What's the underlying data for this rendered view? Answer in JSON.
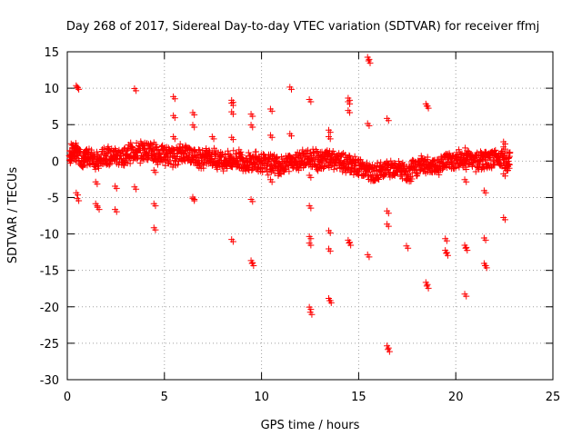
{
  "chart_data": {
    "type": "scatter",
    "title": "Day 268 of 2017, Sidereal Day-to-day VTEC variation (SDTVAR) for receiver ffmj",
    "xlabel": "GPS time / hours",
    "ylabel": "SDTVAR / TECUs",
    "xlim": [
      0,
      25
    ],
    "ylim": [
      -30,
      15
    ],
    "x_ticks": [
      0,
      5,
      10,
      15,
      20,
      25
    ],
    "y_ticks": [
      -30,
      -25,
      -20,
      -15,
      -10,
      -5,
      0,
      5,
      10,
      15
    ],
    "grid": true,
    "marker": "+",
    "series": [
      {
        "name": "SDTVAR",
        "color": "#ff0000",
        "baseline_band": [
          [
            0.1,
            0.6
          ],
          [
            0.3,
            1.4
          ],
          [
            0.5,
            1.0
          ],
          [
            0.8,
            0.2
          ],
          [
            1.0,
            0.4
          ],
          [
            1.3,
            0.7
          ],
          [
            1.6,
            -0.3
          ],
          [
            1.9,
            0.8
          ],
          [
            2.2,
            0.5
          ],
          [
            2.5,
            0.9
          ],
          [
            2.8,
            0.4
          ],
          [
            3.1,
            1.0
          ],
          [
            3.4,
            1.3
          ],
          [
            3.7,
            1.1
          ],
          [
            4.0,
            1.6
          ],
          [
            4.3,
            1.2
          ],
          [
            4.6,
            0.8
          ],
          [
            4.9,
            1.0
          ],
          [
            5.2,
            0.7
          ],
          [
            5.5,
            0.6
          ],
          [
            5.8,
            1.0
          ],
          [
            6.1,
            1.2
          ],
          [
            6.4,
            0.9
          ],
          [
            6.7,
            0.4
          ],
          [
            7.0,
            0.3
          ],
          [
            7.3,
            0.6
          ],
          [
            7.6,
            0.4
          ],
          [
            7.9,
            0.2
          ],
          [
            8.2,
            0.0
          ],
          [
            8.5,
            0.1
          ],
          [
            8.8,
            0.3
          ],
          [
            9.1,
            0.0
          ],
          [
            9.4,
            -0.3
          ],
          [
            9.7,
            0.0
          ],
          [
            10.0,
            -0.1
          ],
          [
            10.3,
            -0.5
          ],
          [
            10.6,
            -0.2
          ],
          [
            10.9,
            -0.8
          ],
          [
            11.2,
            -0.5
          ],
          [
            11.5,
            0.0
          ],
          [
            11.8,
            0.1
          ],
          [
            12.1,
            0.4
          ],
          [
            12.4,
            0.2
          ],
          [
            12.7,
            0.3
          ],
          [
            13.0,
            -0.1
          ],
          [
            13.3,
            0.3
          ],
          [
            13.6,
            0.1
          ],
          [
            13.9,
            0.0
          ],
          [
            14.2,
            -0.3
          ],
          [
            14.5,
            -0.4
          ],
          [
            14.8,
            -0.7
          ],
          [
            15.1,
            -1.0
          ],
          [
            15.4,
            -1.3
          ],
          [
            15.7,
            -1.8
          ],
          [
            16.0,
            -1.6
          ],
          [
            16.3,
            -1.1
          ],
          [
            16.6,
            -1.3
          ],
          [
            16.9,
            -0.7
          ],
          [
            17.2,
            -1.2
          ],
          [
            17.5,
            -2.0
          ],
          [
            17.8,
            -1.2
          ],
          [
            18.1,
            -0.6
          ],
          [
            18.4,
            -0.4
          ],
          [
            18.7,
            -0.6
          ],
          [
            19.0,
            -0.8
          ],
          [
            19.3,
            -0.1
          ],
          [
            19.6,
            0.1
          ],
          [
            19.9,
            0.0
          ],
          [
            20.2,
            0.3
          ],
          [
            20.5,
            0.4
          ],
          [
            20.8,
            0.2
          ],
          [
            21.1,
            -0.2
          ],
          [
            21.4,
            0.1
          ],
          [
            21.7,
            0.0
          ],
          [
            22.0,
            0.4
          ],
          [
            22.3,
            0.6
          ],
          [
            22.6,
            -0.3
          ],
          [
            22.8,
            0.0
          ]
        ],
        "outliers": [
          [
            0.5,
            10.2
          ],
          [
            0.55,
            10.0
          ],
          [
            0.5,
            -4.5
          ],
          [
            0.55,
            -5.3
          ],
          [
            1.5,
            -3.0
          ],
          [
            1.5,
            -6.0
          ],
          [
            1.6,
            -6.5
          ],
          [
            2.5,
            -3.6
          ],
          [
            2.5,
            -6.8
          ],
          [
            3.5,
            9.8
          ],
          [
            3.5,
            -3.7
          ],
          [
            4.5,
            2.4
          ],
          [
            4.5,
            -1.4
          ],
          [
            4.5,
            -6.0
          ],
          [
            4.5,
            -9.3
          ],
          [
            5.5,
            8.7
          ],
          [
            5.5,
            6.1
          ],
          [
            5.5,
            3.2
          ],
          [
            6.5,
            6.5
          ],
          [
            6.5,
            4.8
          ],
          [
            6.5,
            -5.1
          ],
          [
            6.5,
            -5.3
          ],
          [
            7.5,
            3.2
          ],
          [
            8.5,
            8.2
          ],
          [
            8.5,
            7.8
          ],
          [
            8.5,
            6.6
          ],
          [
            8.5,
            3.1
          ],
          [
            8.5,
            -10.9
          ],
          [
            9.5,
            6.3
          ],
          [
            9.5,
            4.8
          ],
          [
            9.5,
            -5.4
          ],
          [
            9.5,
            -13.8
          ],
          [
            9.55,
            -14.2
          ],
          [
            10.5,
            7.0
          ],
          [
            10.5,
            3.4
          ],
          [
            10.5,
            -2.7
          ],
          [
            11.5,
            10.0
          ],
          [
            11.5,
            3.6
          ],
          [
            12.5,
            8.3
          ],
          [
            12.5,
            -6.3
          ],
          [
            12.5,
            -10.5
          ],
          [
            12.5,
            -11.4
          ],
          [
            12.5,
            -20.2
          ],
          [
            12.55,
            -20.9
          ],
          [
            12.5,
            -2.1
          ],
          [
            13.5,
            4.1
          ],
          [
            13.5,
            3.2
          ],
          [
            13.5,
            -9.7
          ],
          [
            13.5,
            -12.2
          ],
          [
            13.5,
            -19.0
          ],
          [
            13.55,
            -19.3
          ],
          [
            14.5,
            8.5
          ],
          [
            14.5,
            8.0
          ],
          [
            14.5,
            6.8
          ],
          [
            14.5,
            -11.0
          ],
          [
            14.55,
            -11.4
          ],
          [
            15.5,
            14.1
          ],
          [
            15.55,
            13.6
          ],
          [
            15.5,
            5.0
          ],
          [
            15.5,
            -13.0
          ],
          [
            16.5,
            5.7
          ],
          [
            16.5,
            -7.0
          ],
          [
            16.5,
            -8.8
          ],
          [
            16.5,
            -25.5
          ],
          [
            16.55,
            -26.0
          ],
          [
            17.5,
            -11.8
          ],
          [
            18.5,
            7.7
          ],
          [
            18.55,
            7.4
          ],
          [
            18.5,
            -16.8
          ],
          [
            18.55,
            -17.3
          ],
          [
            19.5,
            -10.8
          ],
          [
            19.5,
            -12.4
          ],
          [
            19.55,
            -12.8
          ],
          [
            20.5,
            -1.0
          ],
          [
            20.5,
            -2.7
          ],
          [
            20.5,
            -11.7
          ],
          [
            20.55,
            -12.1
          ],
          [
            20.5,
            -18.4
          ],
          [
            21.5,
            -4.2
          ],
          [
            21.5,
            -10.7
          ],
          [
            21.5,
            -14.2
          ],
          [
            21.55,
            -14.5
          ],
          [
            22.5,
            2.5
          ],
          [
            22.5,
            1.8
          ],
          [
            22.5,
            -1.9
          ],
          [
            22.5,
            -7.9
          ]
        ]
      }
    ]
  }
}
